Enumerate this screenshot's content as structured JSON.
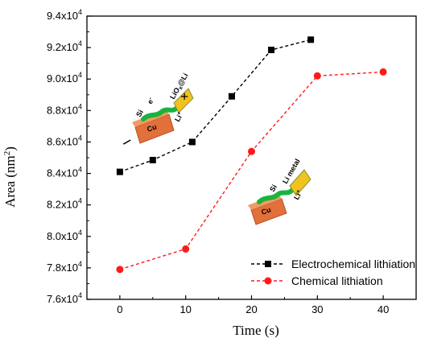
{
  "chart_data": {
    "type": "line",
    "title": "",
    "xlabel": "Time (s)",
    "ylabel_main": "Area (nm",
    "ylabel_sup": "2",
    "ylabel_tail": ")",
    "xlim": [
      -5,
      45
    ],
    "ylim": [
      76000,
      94000
    ],
    "grid": false,
    "x_ticks": [
      0,
      10,
      20,
      30,
      40
    ],
    "y_ticks": [
      {
        "value": 76000,
        "mant": "7.6x10",
        "exp": "4"
      },
      {
        "value": 78000,
        "mant": "7.8x10",
        "exp": "4"
      },
      {
        "value": 80000,
        "mant": "8.0x10",
        "exp": "4"
      },
      {
        "value": 82000,
        "mant": "8.2x10",
        "exp": "4"
      },
      {
        "value": 84000,
        "mant": "8.4x10",
        "exp": "4"
      },
      {
        "value": 86000,
        "mant": "8.6x10",
        "exp": "4"
      },
      {
        "value": 88000,
        "mant": "8.8x10",
        "exp": "4"
      },
      {
        "value": 90000,
        "mant": "9.0x10",
        "exp": "4"
      },
      {
        "value": 92000,
        "mant": "9.2x10",
        "exp": "4"
      },
      {
        "value": 94000,
        "mant": "9.4x10",
        "exp": "4"
      }
    ],
    "legend_position": "bottom-right",
    "series": [
      {
        "name": "Electrochemical lithiation",
        "color": "#000000",
        "marker": "square",
        "line": "dashed",
        "x": [
          0,
          5,
          11,
          17,
          23,
          29
        ],
        "y": [
          84100,
          84850,
          86000,
          88900,
          91850,
          92500
        ]
      },
      {
        "name": "Chemical lithiation",
        "color": "#ff1a1a",
        "marker": "circle",
        "line": "dashed",
        "x": [
          0,
          10,
          20,
          30,
          40
        ],
        "y": [
          77900,
          79200,
          85400,
          90200,
          90450
        ]
      }
    ]
  },
  "insets": {
    "electrochemical": {
      "cu": "Cu",
      "si": "Si",
      "e": "e",
      "e_sup": "-",
      "li": "Li",
      "li_sup": "+",
      "lio_a": "LiO",
      "lio_sub": "x",
      "lio_b": "@Li",
      "minus": "−",
      "plus": "+"
    },
    "chemical": {
      "cu": "Cu",
      "si": "Si",
      "li_metal": "Li metal",
      "li": "Li",
      "li_sup": "+"
    }
  },
  "colors": {
    "copper": "#e2703a",
    "silicon": "#19b43c",
    "lithium_a": "#f2c21e",
    "lithium_b": "#8a8f3a"
  }
}
